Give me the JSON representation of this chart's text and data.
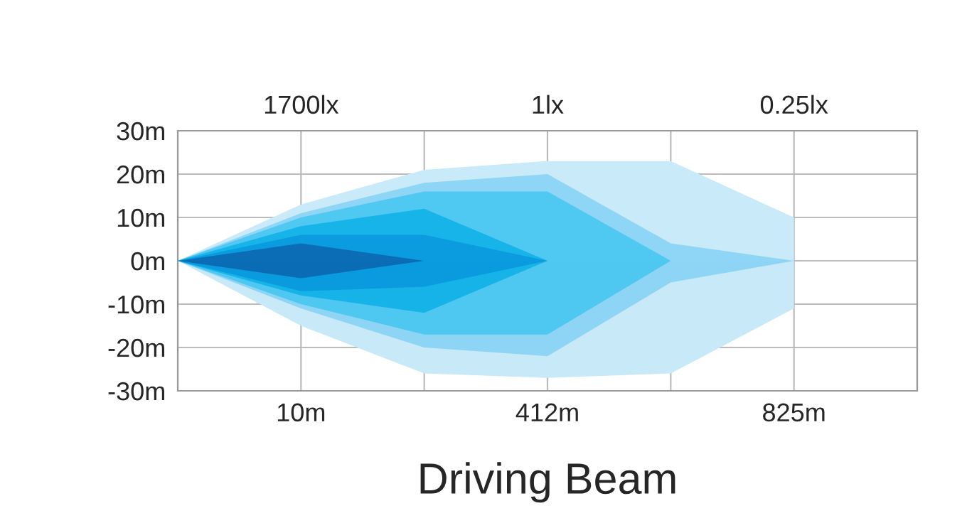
{
  "chart_data": {
    "type": "area",
    "xlabel": "Driving Beam",
    "categories": [
      null,
      "10m",
      null,
      "412m",
      null,
      "825m",
      null
    ],
    "ylim": [
      -30,
      30
    ],
    "yticks": [
      {
        "value": -30,
        "label": "-30m"
      },
      {
        "value": -20,
        "label": "-20m"
      },
      {
        "value": -10,
        "label": "-10m"
      },
      {
        "value": 0,
        "label": "0m"
      },
      {
        "value": 10,
        "label": "10m"
      },
      {
        "value": 20,
        "label": "20m"
      },
      {
        "value": 30,
        "label": "30m"
      }
    ],
    "grid": true,
    "annotations": [
      "1700lx",
      "1lx",
      "0.25lx"
    ],
    "series": [
      {
        "color": "#c8eaf9",
        "values": [
          0,
          13,
          21,
          23,
          23,
          10,
          null
        ]
      },
      {
        "color": "#c7e9f8",
        "values": [
          0,
          -15,
          -26,
          -27,
          -26,
          -11,
          null
        ]
      },
      {
        "color": "#8fd5f6",
        "values": [
          0,
          11,
          18,
          20,
          4,
          0,
          null
        ]
      },
      {
        "color": "#8ed4f5",
        "values": [
          0,
          -11,
          -20,
          -22,
          -5,
          0,
          null
        ]
      },
      {
        "color": "#4fc8f2",
        "values": [
          0,
          10,
          16,
          16,
          0,
          null,
          null
        ]
      },
      {
        "color": "#4ec7f1",
        "values": [
          0,
          -10,
          -17,
          -17,
          0,
          null,
          null
        ]
      },
      {
        "color": "#17b4ea",
        "values": [
          0,
          8,
          12,
          0,
          null,
          null,
          null
        ]
      },
      {
        "color": "#16b3e9",
        "values": [
          0,
          -8,
          -12,
          0,
          null,
          null,
          null
        ]
      },
      {
        "color": "#0b9ce0",
        "values": [
          0,
          6,
          6,
          0,
          null,
          null,
          null
        ]
      },
      {
        "color": "#0a9bdf",
        "values": [
          0,
          -7,
          -6,
          0,
          null,
          null,
          null
        ]
      },
      {
        "color": "#0a6db6",
        "values": [
          0,
          4,
          0,
          null,
          null,
          null,
          null
        ]
      },
      {
        "color": "#096cb5",
        "values": [
          0,
          -4,
          0,
          null,
          null,
          null,
          null
        ]
      }
    ]
  }
}
